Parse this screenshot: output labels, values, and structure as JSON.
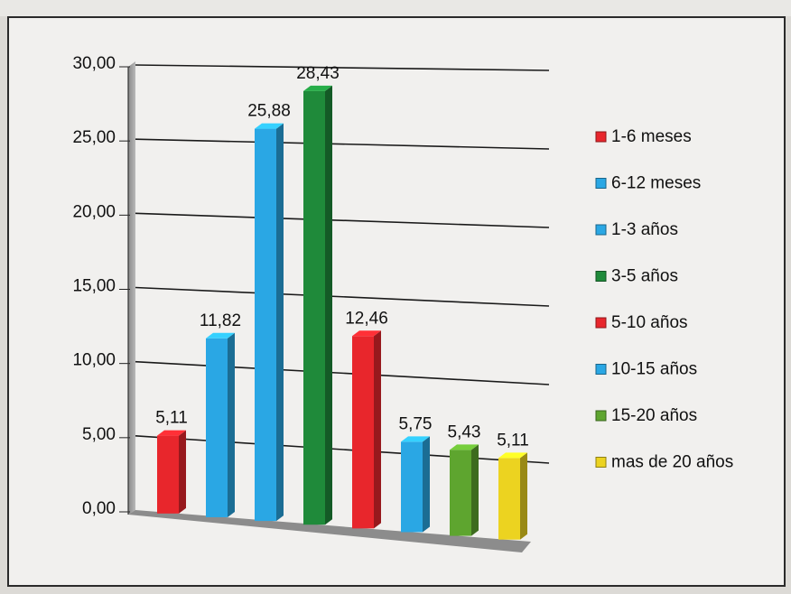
{
  "chart_data": {
    "type": "bar",
    "categories": [
      "1-6 meses",
      "6-12 meses",
      "1-3 años",
      "3-5 años",
      "5-10 años",
      "10-15 años",
      "15-20 años",
      "mas de 20 años"
    ],
    "values": [
      5.11,
      11.82,
      25.88,
      28.43,
      12.46,
      5.75,
      5.43,
      5.11
    ],
    "value_labels": [
      "5,11",
      "11,82",
      "25,88",
      "28,43",
      "12,46",
      "5,75",
      "5,43",
      "5,11"
    ],
    "colors": [
      "#e8262c",
      "#2aa7e4",
      "#2aa7e4",
      "#1f8a3a",
      "#e8262c",
      "#2aa7e4",
      "#5ea52f",
      "#ecd320"
    ],
    "yticks": [
      "0,00",
      "5,00",
      "10,00",
      "15,00",
      "20,00",
      "25,00",
      "30,00"
    ],
    "ylim": [
      0,
      30
    ],
    "grid": true,
    "legend_position": "right",
    "style": "3d-column"
  }
}
